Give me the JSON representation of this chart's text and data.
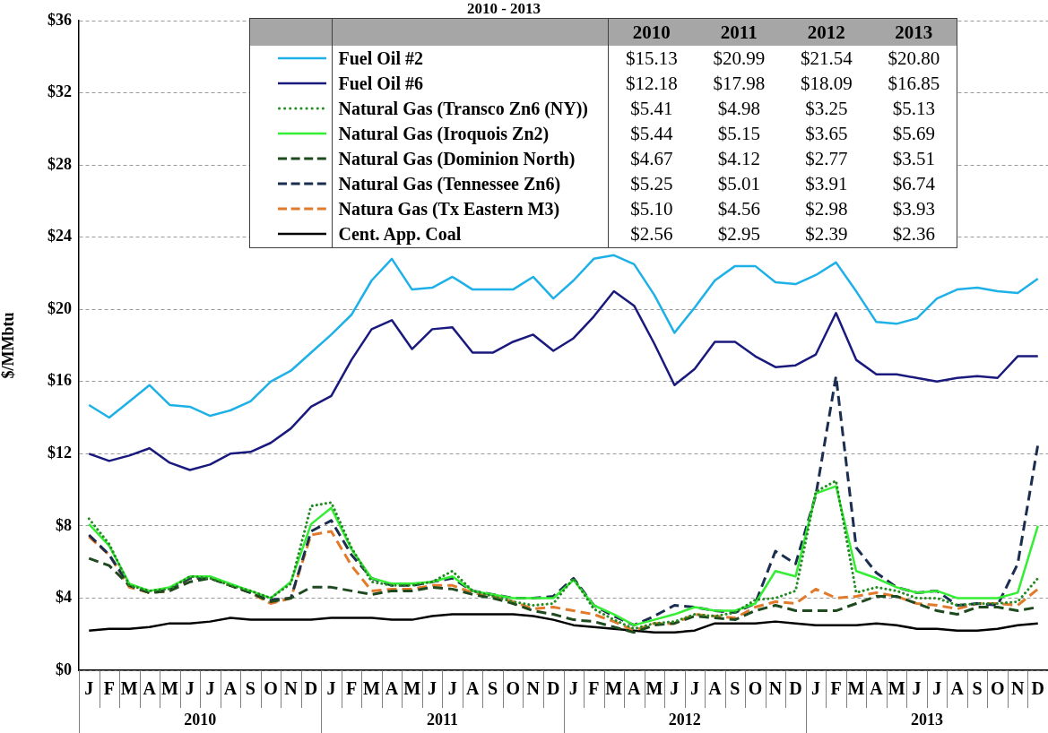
{
  "chart_data": [
    {
      "type": "line",
      "title": "2010 - 2013",
      "ylabel": "$/MMbtu",
      "categories": [
        "J",
        "F",
        "M",
        "A",
        "M",
        "J",
        "J",
        "A",
        "S",
        "O",
        "N",
        "D",
        "J",
        "F",
        "M",
        "A",
        "M",
        "J",
        "J",
        "A",
        "S",
        "O",
        "N",
        "D",
        "J",
        "F",
        "M",
        "A",
        "M",
        "J",
        "J",
        "A",
        "S",
        "O",
        "N",
        "D",
        "J",
        "F",
        "M",
        "A",
        "M",
        "J",
        "J",
        "A",
        "S",
        "O",
        "N",
        "D"
      ],
      "series": [
        {
          "name": "Fuel Oil #2",
          "color": "#1eb1e7",
          "line_style": "solid",
          "values": [
            14.7,
            14.0,
            14.9,
            15.8,
            14.7,
            14.6,
            14.1,
            14.4,
            14.9,
            16.0,
            16.6,
            17.6,
            18.6,
            19.7,
            21.6,
            22.8,
            21.1,
            21.2,
            21.8,
            21.1,
            21.1,
            21.1,
            21.8,
            20.6,
            21.6,
            22.8,
            23.0,
            22.5,
            20.8,
            18.7,
            20.1,
            21.6,
            22.4,
            22.4,
            21.5,
            21.4,
            21.9,
            22.6,
            21.0,
            19.3,
            19.2,
            19.5,
            20.6,
            21.1,
            21.2,
            21.0,
            20.9,
            21.7
          ]
        },
        {
          "name": "Fuel Oil #6",
          "color": "#1a1a7e",
          "line_style": "solid",
          "values": [
            12.0,
            11.6,
            11.9,
            12.3,
            11.5,
            11.1,
            11.4,
            12.0,
            12.1,
            12.6,
            13.4,
            14.6,
            15.2,
            17.2,
            18.9,
            19.4,
            17.8,
            18.9,
            19.0,
            17.6,
            17.6,
            18.2,
            18.6,
            17.7,
            18.4,
            19.6,
            21.0,
            20.2,
            18.1,
            15.8,
            16.7,
            18.2,
            18.2,
            17.4,
            16.8,
            16.9,
            17.5,
            19.8,
            17.2,
            16.4,
            16.4,
            16.2,
            16.0,
            16.2,
            16.3,
            16.2,
            17.4,
            17.4
          ]
        },
        {
          "name": "Natural Gas (Transco Zn6 (NY))",
          "color": "#228b22",
          "line_style": "dotted",
          "values": [
            8.4,
            7.0,
            4.7,
            4.4,
            4.5,
            5.2,
            5.1,
            4.7,
            4.4,
            4.0,
            4.8,
            9.1,
            9.3,
            6.8,
            4.9,
            4.7,
            4.7,
            4.9,
            5.5,
            4.4,
            4.1,
            3.8,
            3.6,
            3.7,
            5.1,
            3.4,
            2.8,
            2.3,
            2.6,
            2.7,
            3.1,
            3.0,
            3.2,
            3.9,
            4.0,
            4.4,
            9.9,
            10.5,
            4.3,
            4.6,
            4.4,
            4.0,
            4.0,
            3.6,
            3.7,
            3.7,
            3.8,
            5.1
          ]
        },
        {
          "name": "Natural Gas (Iroquois Zn2)",
          "color": "#33ee33",
          "line_style": "solid",
          "values": [
            8.1,
            6.9,
            4.8,
            4.4,
            4.6,
            5.2,
            5.2,
            4.8,
            4.4,
            4.0,
            4.9,
            8.1,
            9.0,
            6.7,
            5.1,
            4.8,
            4.8,
            4.9,
            5.2,
            4.4,
            4.2,
            4.0,
            4.0,
            4.0,
            5.0,
            3.6,
            3.1,
            2.5,
            2.8,
            3.1,
            3.5,
            3.3,
            3.3,
            3.7,
            5.5,
            5.2,
            9.8,
            10.2,
            5.5,
            5.1,
            4.6,
            4.3,
            4.4,
            4.0,
            4.0,
            4.0,
            4.3,
            8.0
          ]
        },
        {
          "name": "Natural Gas (Dominion North)",
          "color": "#1f4a1f",
          "line_style": "dashed",
          "values": [
            6.2,
            5.8,
            4.7,
            4.3,
            4.4,
            4.9,
            5.1,
            4.7,
            4.3,
            3.8,
            4.0,
            4.6,
            4.6,
            4.4,
            4.2,
            4.4,
            4.4,
            4.6,
            4.5,
            4.2,
            4.0,
            3.7,
            3.3,
            3.1,
            2.8,
            2.7,
            2.4,
            2.1,
            2.5,
            2.6,
            3.0,
            2.9,
            2.8,
            3.3,
            3.6,
            3.3,
            3.3,
            3.3,
            3.7,
            4.1,
            4.1,
            3.7,
            3.3,
            3.1,
            3.5,
            3.5,
            3.3,
            3.5
          ]
        },
        {
          "name": "Natural Gas (Tennessee Zn6)",
          "color": "#1c2e4f",
          "line_style": "dashed",
          "values": [
            7.5,
            6.4,
            4.7,
            4.3,
            4.5,
            5.1,
            5.1,
            4.7,
            4.3,
            3.9,
            4.0,
            7.7,
            8.3,
            6.4,
            5.1,
            4.7,
            4.7,
            4.9,
            5.1,
            4.4,
            4.2,
            4.0,
            4.0,
            4.1,
            5.1,
            3.6,
            3.0,
            2.5,
            3.0,
            3.6,
            3.5,
            3.3,
            3.2,
            3.7,
            6.6,
            5.9,
            9.7,
            16.3,
            6.8,
            5.4,
            4.6,
            4.3,
            4.4,
            3.6,
            3.7,
            3.6,
            5.9,
            12.5
          ]
        },
        {
          "name": "Natura Gas (Tx Eastern M3)",
          "color": "#e27a2c",
          "line_style": "dashed",
          "values": [
            7.4,
            6.4,
            4.6,
            4.3,
            4.4,
            5.1,
            5.1,
            4.7,
            4.3,
            3.7,
            4.0,
            7.5,
            7.7,
            5.8,
            4.4,
            4.5,
            4.5,
            4.7,
            4.7,
            4.3,
            4.1,
            3.8,
            3.4,
            3.5,
            3.3,
            3.1,
            2.7,
            2.2,
            2.6,
            2.6,
            3.1,
            3.0,
            2.9,
            3.5,
            3.8,
            3.7,
            4.5,
            4.0,
            4.1,
            4.3,
            4.1,
            3.7,
            3.6,
            3.4,
            3.7,
            3.7,
            3.6,
            4.5
          ]
        },
        {
          "name": "Cent. App. Coal",
          "color": "#000000",
          "line_style": "solid",
          "values": [
            2.2,
            2.3,
            2.3,
            2.4,
            2.6,
            2.6,
            2.7,
            2.9,
            2.8,
            2.8,
            2.8,
            2.8,
            2.9,
            2.9,
            2.9,
            2.8,
            2.8,
            3.0,
            3.1,
            3.1,
            3.1,
            3.1,
            3.0,
            2.8,
            2.5,
            2.4,
            2.3,
            2.2,
            2.1,
            2.1,
            2.2,
            2.6,
            2.6,
            2.6,
            2.7,
            2.6,
            2.5,
            2.5,
            2.5,
            2.6,
            2.5,
            2.3,
            2.3,
            2.2,
            2.2,
            2.3,
            2.5,
            2.6
          ]
        }
      ],
      "ylim": [
        0,
        36
      ],
      "yticks": [
        {
          "value": 0,
          "label": "$0"
        },
        {
          "value": 4,
          "label": "$4"
        },
        {
          "value": 8,
          "label": "$8"
        },
        {
          "value": 12,
          "label": "$12"
        },
        {
          "value": 16,
          "label": "$16"
        },
        {
          "value": 20,
          "label": "$20"
        },
        {
          "value": 24,
          "label": "$24"
        },
        {
          "value": 28,
          "label": "$28"
        },
        {
          "value": 32,
          "label": "$32"
        },
        {
          "value": 36,
          "label": "$36"
        }
      ],
      "grid": "y",
      "legend": "top",
      "annotations": [
        "2010",
        "2011",
        "2012",
        "2013"
      ]
    },
    {
      "type": "other",
      "annotations": [
        "$15.13",
        "$20.99",
        "$21.54",
        "$20.80",
        "$12.18",
        "$17.98",
        "$18.09",
        "$16.85",
        "$5.41",
        "$4.98",
        "$3.25",
        "$5.13",
        "$5.44",
        "$5.15",
        "$3.65",
        "$5.69",
        "$4.67",
        "$4.12",
        "$2.77",
        "$3.51",
        "$5.25",
        "$5.01",
        "$3.91",
        "$6.74",
        "$5.10",
        "$4.56",
        "$2.98",
        "$3.93",
        "$2.56",
        "$2.95",
        "$2.39",
        "$2.36"
      ]
    }
  ]
}
